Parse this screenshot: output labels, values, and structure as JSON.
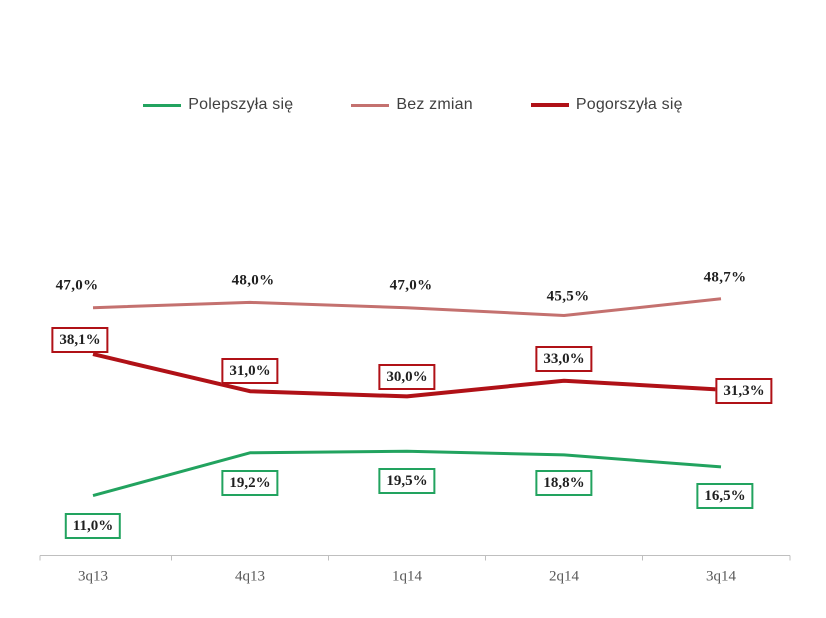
{
  "chart_data": {
    "type": "line",
    "categories": [
      "3q13",
      "4q13",
      "1q14",
      "2q14",
      "3q14"
    ],
    "series": [
      {
        "name": "Polepszyła się",
        "color": "#22A35F",
        "values": [
          11.0,
          19.2,
          19.5,
          18.8,
          16.5
        ],
        "labels": [
          "11,0%",
          "19,2%",
          "19,5%",
          "18,8%",
          "16,5%"
        ],
        "label_style": "box",
        "label_offsets": [
          [
            0,
            30
          ],
          [
            0,
            30
          ],
          [
            0,
            30
          ],
          [
            0,
            28
          ],
          [
            4,
            29
          ]
        ],
        "line_width": 3
      },
      {
        "name": "Bez zmian",
        "color": "#C4716F",
        "values": [
          47.0,
          48.0,
          47.0,
          45.5,
          48.7
        ],
        "labels": [
          "47,0%",
          "48,0%",
          "47,0%",
          "45,5%",
          "48,7%"
        ],
        "label_style": "plain",
        "label_offsets": [
          [
            -16,
            -22
          ],
          [
            3,
            -21
          ],
          [
            4,
            -22
          ],
          [
            4,
            -18
          ],
          [
            4,
            -21
          ]
        ],
        "line_width": 3
      },
      {
        "name": "Pogorszyła się",
        "color": "#B01117",
        "values": [
          38.1,
          31.0,
          30.0,
          33.0,
          31.3
        ],
        "labels": [
          "38,1%",
          "31,0%",
          "30,0%",
          "33,0%",
          "31,3%"
        ],
        "label_style": "box",
        "label_offsets": [
          [
            -13,
            -14
          ],
          [
            0,
            -20
          ],
          [
            0,
            -19
          ],
          [
            0,
            -22
          ],
          [
            23,
            1
          ]
        ],
        "line_width": 4
      }
    ],
    "title": "",
    "xlabel": "",
    "ylabel": "",
    "ylim": [
      0,
      105
    ],
    "grid": false,
    "legend_position": "top",
    "axis_color": "#BFBFBF",
    "data_label_color": "#1F1F1F",
    "tick_label_color": "#595959",
    "legend_text_color": "#404040"
  }
}
